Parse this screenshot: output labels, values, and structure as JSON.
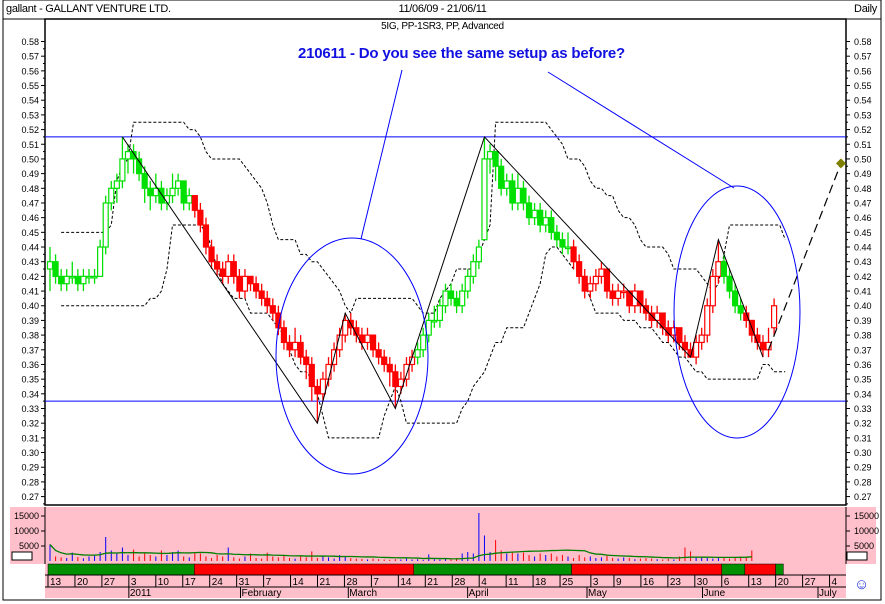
{
  "header": {
    "title": "gallant - GALLANT VENTURE LTD.",
    "date_range": "11/06/09 - 21/06/11",
    "period": "Daily",
    "subtitle": "5IG, PP-1SR3, PP, Advanced"
  },
  "annotation": "210611 - Do you see the same setup as before?",
  "colors": {
    "up_trend": "#009000",
    "down_trend": "#ff0000",
    "candle_green": "#00e000",
    "candle_red": "#ff0000",
    "horizontal_lines": "#0000ff",
    "ellipses": "#0000ff",
    "volume_pane": "#ffc0cb",
    "volume_ma": "#008000",
    "volume_up": "#0000ff",
    "volume_down": "#ff0000"
  },
  "chart_data": {
    "type": "candlestick",
    "price_axis": {
      "ylim": [
        0.27,
        0.58
      ],
      "ticks": [
        0.27,
        0.28,
        0.29,
        0.3,
        0.31,
        0.32,
        0.33,
        0.34,
        0.35,
        0.36,
        0.37,
        0.38,
        0.39,
        0.4,
        0.41,
        0.42,
        0.43,
        0.44,
        0.45,
        0.46,
        0.47,
        0.48,
        0.49,
        0.5,
        0.51,
        0.52,
        0.53,
        0.54,
        0.55,
        0.56,
        0.57,
        0.58
      ]
    },
    "volume_axis": {
      "ylim": [
        0,
        18000
      ],
      "ticks": [
        5000,
        10000,
        15000
      ]
    },
    "x_range": [
      "2010-12-13",
      "2011-07-06"
    ],
    "horizontal_lines": [
      0.515,
      0.335
    ],
    "candles_ohlc": [
      [
        0.425,
        0.44,
        0.41,
        0.43
      ],
      [
        0.43,
        0.435,
        0.415,
        0.42
      ],
      [
        0.42,
        0.425,
        0.41,
        0.415
      ],
      [
        0.415,
        0.425,
        0.41,
        0.42
      ],
      [
        0.42,
        0.43,
        0.415,
        0.42
      ],
      [
        0.42,
        0.425,
        0.41,
        0.415
      ],
      [
        0.415,
        0.425,
        0.41,
        0.42
      ],
      [
        0.42,
        0.425,
        0.415,
        0.42
      ],
      [
        0.42,
        0.425,
        0.415,
        0.42
      ],
      [
        0.42,
        0.445,
        0.42,
        0.44
      ],
      [
        0.44,
        0.475,
        0.435,
        0.47
      ],
      [
        0.47,
        0.485,
        0.465,
        0.48
      ],
      [
        0.48,
        0.49,
        0.47,
        0.485
      ],
      [
        0.485,
        0.515,
        0.48,
        0.5
      ],
      [
        0.5,
        0.51,
        0.49,
        0.505
      ],
      [
        0.505,
        0.51,
        0.49,
        0.5
      ],
      [
        0.5,
        0.505,
        0.485,
        0.49
      ],
      [
        0.49,
        0.495,
        0.47,
        0.48
      ],
      [
        0.48,
        0.485,
        0.465,
        0.475
      ],
      [
        0.475,
        0.49,
        0.47,
        0.48
      ],
      [
        0.48,
        0.485,
        0.465,
        0.47
      ],
      [
        0.47,
        0.48,
        0.465,
        0.475
      ],
      [
        0.475,
        0.49,
        0.47,
        0.48
      ],
      [
        0.48,
        0.49,
        0.475,
        0.485
      ],
      [
        0.485,
        0.485,
        0.465,
        0.47
      ],
      [
        0.47,
        0.48,
        0.465,
        0.475
      ],
      [
        0.475,
        0.475,
        0.46,
        0.465
      ],
      [
        0.465,
        0.47,
        0.45,
        0.455
      ],
      [
        0.455,
        0.46,
        0.435,
        0.44
      ],
      [
        0.44,
        0.445,
        0.425,
        0.43
      ],
      [
        0.43,
        0.435,
        0.42,
        0.425
      ],
      [
        0.425,
        0.43,
        0.415,
        0.42
      ],
      [
        0.42,
        0.435,
        0.415,
        0.43
      ],
      [
        0.43,
        0.435,
        0.415,
        0.42
      ],
      [
        0.42,
        0.425,
        0.405,
        0.41
      ],
      [
        0.41,
        0.425,
        0.405,
        0.42
      ],
      [
        0.42,
        0.42,
        0.41,
        0.415
      ],
      [
        0.415,
        0.42,
        0.405,
        0.41
      ],
      [
        0.41,
        0.415,
        0.4,
        0.405
      ],
      [
        0.405,
        0.41,
        0.395,
        0.4
      ],
      [
        0.4,
        0.405,
        0.39,
        0.395
      ],
      [
        0.395,
        0.4,
        0.38,
        0.385
      ],
      [
        0.385,
        0.39,
        0.37,
        0.375
      ],
      [
        0.375,
        0.38,
        0.365,
        0.37
      ],
      [
        0.37,
        0.385,
        0.365,
        0.375
      ],
      [
        0.375,
        0.38,
        0.36,
        0.365
      ],
      [
        0.365,
        0.37,
        0.35,
        0.36
      ],
      [
        0.36,
        0.365,
        0.335,
        0.345
      ],
      [
        0.345,
        0.35,
        0.32,
        0.34
      ],
      [
        0.34,
        0.355,
        0.335,
        0.35
      ],
      [
        0.35,
        0.365,
        0.345,
        0.36
      ],
      [
        0.36,
        0.375,
        0.355,
        0.37
      ],
      [
        0.37,
        0.385,
        0.365,
        0.38
      ],
      [
        0.38,
        0.395,
        0.375,
        0.39
      ],
      [
        0.39,
        0.395,
        0.38,
        0.385
      ],
      [
        0.385,
        0.39,
        0.375,
        0.38
      ],
      [
        0.38,
        0.385,
        0.37,
        0.375
      ],
      [
        0.375,
        0.385,
        0.37,
        0.38
      ],
      [
        0.38,
        0.38,
        0.365,
        0.37
      ],
      [
        0.37,
        0.375,
        0.36,
        0.365
      ],
      [
        0.365,
        0.37,
        0.355,
        0.36
      ],
      [
        0.36,
        0.365,
        0.345,
        0.355
      ],
      [
        0.355,
        0.36,
        0.33,
        0.345
      ],
      [
        0.345,
        0.355,
        0.34,
        0.35
      ],
      [
        0.35,
        0.365,
        0.345,
        0.36
      ],
      [
        0.36,
        0.37,
        0.355,
        0.365
      ],
      [
        0.365,
        0.375,
        0.36,
        0.37
      ],
      [
        0.37,
        0.385,
        0.365,
        0.38
      ],
      [
        0.38,
        0.395,
        0.375,
        0.39
      ],
      [
        0.39,
        0.4,
        0.385,
        0.39
      ],
      [
        0.39,
        0.405,
        0.385,
        0.4
      ],
      [
        0.4,
        0.415,
        0.395,
        0.41
      ],
      [
        0.41,
        0.415,
        0.4,
        0.405
      ],
      [
        0.405,
        0.41,
        0.395,
        0.4
      ],
      [
        0.4,
        0.415,
        0.395,
        0.41
      ],
      [
        0.41,
        0.425,
        0.405,
        0.42
      ],
      [
        0.42,
        0.435,
        0.415,
        0.43
      ],
      [
        0.43,
        0.445,
        0.425,
        0.44
      ],
      [
        0.445,
        0.515,
        0.445,
        0.5
      ],
      [
        0.5,
        0.51,
        0.49,
        0.505
      ],
      [
        0.505,
        0.505,
        0.485,
        0.495
      ],
      [
        0.495,
        0.5,
        0.475,
        0.48
      ],
      [
        0.48,
        0.49,
        0.475,
        0.485
      ],
      [
        0.485,
        0.49,
        0.465,
        0.47
      ],
      [
        0.47,
        0.49,
        0.465,
        0.48
      ],
      [
        0.48,
        0.485,
        0.465,
        0.47
      ],
      [
        0.47,
        0.475,
        0.455,
        0.46
      ],
      [
        0.46,
        0.47,
        0.455,
        0.465
      ],
      [
        0.465,
        0.47,
        0.45,
        0.455
      ],
      [
        0.455,
        0.465,
        0.45,
        0.46
      ],
      [
        0.46,
        0.465,
        0.445,
        0.45
      ],
      [
        0.45,
        0.455,
        0.44,
        0.445
      ],
      [
        0.445,
        0.45,
        0.435,
        0.44
      ],
      [
        0.44,
        0.45,
        0.435,
        0.44
      ],
      [
        0.44,
        0.445,
        0.425,
        0.43
      ],
      [
        0.43,
        0.435,
        0.415,
        0.42
      ],
      [
        0.42,
        0.425,
        0.405,
        0.41
      ],
      [
        0.41,
        0.42,
        0.405,
        0.415
      ],
      [
        0.415,
        0.425,
        0.41,
        0.42
      ],
      [
        0.42,
        0.43,
        0.415,
        0.425
      ],
      [
        0.425,
        0.425,
        0.405,
        0.41
      ],
      [
        0.41,
        0.415,
        0.4,
        0.405
      ],
      [
        0.405,
        0.415,
        0.4,
        0.41
      ],
      [
        0.41,
        0.415,
        0.405,
        0.41
      ],
      [
        0.41,
        0.41,
        0.395,
        0.4
      ],
      [
        0.4,
        0.415,
        0.395,
        0.41
      ],
      [
        0.41,
        0.41,
        0.395,
        0.4
      ],
      [
        0.4,
        0.405,
        0.39,
        0.395
      ],
      [
        0.395,
        0.4,
        0.385,
        0.39
      ],
      [
        0.39,
        0.4,
        0.385,
        0.395
      ],
      [
        0.395,
        0.395,
        0.38,
        0.385
      ],
      [
        0.385,
        0.39,
        0.375,
        0.38
      ],
      [
        0.38,
        0.39,
        0.375,
        0.385
      ],
      [
        0.385,
        0.385,
        0.37,
        0.375
      ],
      [
        0.375,
        0.38,
        0.365,
        0.37
      ],
      [
        0.37,
        0.375,
        0.365,
        0.365
      ],
      [
        0.365,
        0.38,
        0.36,
        0.375
      ],
      [
        0.375,
        0.385,
        0.37,
        0.38
      ],
      [
        0.38,
        0.405,
        0.375,
        0.4
      ],
      [
        0.4,
        0.425,
        0.395,
        0.42
      ],
      [
        0.42,
        0.445,
        0.415,
        0.43
      ],
      [
        0.43,
        0.435,
        0.415,
        0.42
      ],
      [
        0.42,
        0.425,
        0.405,
        0.41
      ],
      [
        0.41,
        0.415,
        0.395,
        0.4
      ],
      [
        0.4,
        0.405,
        0.39,
        0.395
      ],
      [
        0.395,
        0.4,
        0.385,
        0.39
      ],
      [
        0.39,
        0.39,
        0.375,
        0.38
      ],
      [
        0.38,
        0.385,
        0.37,
        0.375
      ],
      [
        0.375,
        0.38,
        0.365,
        0.37
      ],
      [
        0.37,
        0.385,
        0.365,
        0.375
      ],
      [
        0.385,
        0.405,
        0.38,
        0.4
      ]
    ],
    "volume": [
      5500,
      1500,
      1200,
      1000,
      2800,
      1300,
      900,
      1500,
      2000,
      3000,
      8000,
      3500,
      2500,
      4500,
      2000,
      3800,
      1500,
      2500,
      2000,
      1500,
      3500,
      2000,
      3000,
      3500,
      1500,
      1200,
      3000,
      2500,
      1500,
      1000,
      2000,
      1500,
      4500,
      1200,
      800,
      1500,
      2500,
      1000,
      800,
      2800,
      1500,
      1200,
      2000,
      1000,
      800,
      1500,
      1200,
      3200,
      1000,
      1500,
      1200,
      800,
      2000,
      1500,
      1000,
      800,
      700,
      500,
      800,
      600,
      500,
      400,
      600,
      500,
      800,
      500,
      600,
      400,
      2200,
      600,
      500,
      800,
      600,
      1000,
      2500,
      3000,
      2500,
      16000,
      8500,
      3000,
      7000,
      3500,
      2500,
      2800,
      2500,
      2800,
      2000,
      1500,
      2500,
      2000,
      2500,
      1500,
      2000,
      1500,
      1000,
      2000,
      1200,
      1500,
      1000,
      1200,
      1800,
      1000,
      800,
      1200,
      1000,
      600,
      800,
      1000,
      800,
      600,
      500,
      700,
      500,
      1500,
      4500,
      3200,
      1500,
      1200,
      1000,
      800,
      1200,
      1000,
      800,
      1000,
      1500,
      1200,
      3500
    ],
    "trend_bar": [
      {
        "from": "2010-12-13",
        "to": "2011-01-20",
        "trend": "up"
      },
      {
        "from": "2011-01-20",
        "to": "2011-03-18",
        "trend": "down"
      },
      {
        "from": "2011-03-18",
        "to": "2011-04-28",
        "trend": "up"
      },
      {
        "from": "2011-04-28",
        "to": "2011-06-06",
        "trend": "down"
      },
      {
        "from": "2011-06-06",
        "to": "2011-06-12",
        "trend": "up"
      },
      {
        "from": "2011-06-12",
        "to": "2011-06-20",
        "trend": "down"
      },
      {
        "from": "2011-06-20",
        "to": "2011-06-22",
        "trend": "up"
      }
    ],
    "zigzag": [
      [
        13,
        0.515
      ],
      [
        48,
        0.32
      ],
      [
        53,
        0.395
      ],
      [
        62,
        0.33
      ],
      [
        78,
        0.515
      ],
      [
        115,
        0.365
      ],
      [
        120,
        0.445
      ],
      [
        128,
        0.365
      ]
    ],
    "projection": {
      "from": [
        129,
        0.37
      ],
      "to": [
        142,
        0.497
      ]
    },
    "x_ticks": [
      {
        "date": "2010-12-13",
        "label": "13"
      },
      {
        "date": "2010-12-20",
        "label": "20"
      },
      {
        "date": "2010-12-27",
        "label": "27"
      },
      {
        "date": "2011-01-03",
        "label": "3"
      },
      {
        "date": "2011-01-10",
        "label": "10"
      },
      {
        "date": "2011-01-17",
        "label": "17"
      },
      {
        "date": "2011-01-24",
        "label": "24"
      },
      {
        "date": "2011-01-31",
        "label": "31"
      },
      {
        "date": "2011-02-07",
        "label": "7"
      },
      {
        "date": "2011-02-14",
        "label": "14"
      },
      {
        "date": "2011-02-21",
        "label": "21"
      },
      {
        "date": "2011-02-28",
        "label": "28"
      },
      {
        "date": "2011-03-07",
        "label": "7"
      },
      {
        "date": "2011-03-14",
        "label": "14"
      },
      {
        "date": "2011-03-21",
        "label": "21"
      },
      {
        "date": "2011-03-28",
        "label": "28"
      },
      {
        "date": "2011-04-04",
        "label": "4"
      },
      {
        "date": "2011-04-11",
        "label": "11"
      },
      {
        "date": "2011-04-18",
        "label": "18"
      },
      {
        "date": "2011-04-25",
        "label": "25"
      },
      {
        "date": "2011-05-03",
        "label": "3"
      },
      {
        "date": "2011-05-09",
        "label": "9"
      },
      {
        "date": "2011-05-16",
        "label": "16"
      },
      {
        "date": "2011-05-23",
        "label": "23"
      },
      {
        "date": "2011-05-30",
        "label": "30"
      },
      {
        "date": "2011-06-06",
        "label": "6"
      },
      {
        "date": "2011-06-13",
        "label": "13"
      },
      {
        "date": "2011-06-20",
        "label": "20"
      },
      {
        "date": "2011-06-27",
        "label": "27"
      },
      {
        "date": "2011-07-04",
        "label": "4"
      }
    ],
    "month_labels": [
      {
        "date": "2011-01-03",
        "label": "2011"
      },
      {
        "date": "2011-02-01",
        "label": "February"
      },
      {
        "date": "2011-03-01",
        "label": "March"
      },
      {
        "date": "2011-04-01",
        "label": "April"
      },
      {
        "date": "2011-05-02",
        "label": "May"
      },
      {
        "date": "2011-06-01",
        "label": "June"
      },
      {
        "date": "2011-07-01",
        "label": "July"
      }
    ]
  },
  "icons": {
    "smiley": "☺"
  }
}
